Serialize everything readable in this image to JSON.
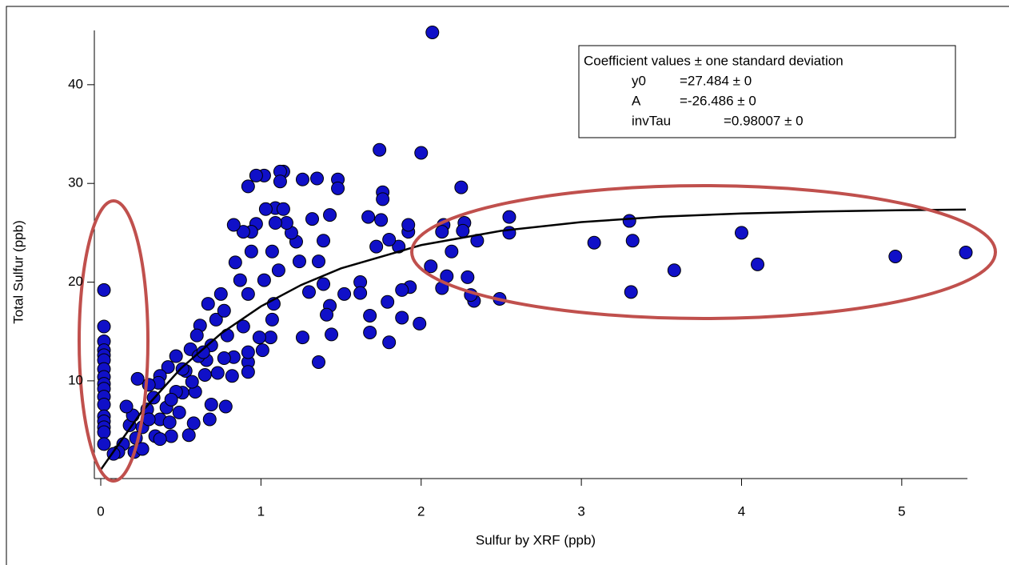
{
  "chart_data": {
    "type": "scatter",
    "xlabel": "Sulfur by XRF (ppb)",
    "ylabel": "Total Sulfur (ppb)",
    "xlim": [
      -0.04,
      5.41
    ],
    "ylim": [
      0.1,
      45.5
    ],
    "xticks": [
      0,
      1,
      2,
      3,
      4,
      5
    ],
    "yticks": [
      10,
      20,
      30,
      40
    ],
    "color": "#1010c8",
    "x": [
      0.02,
      0.02,
      0.02,
      0.02,
      0.02,
      0.02,
      0.02,
      0.02,
      0.02,
      0.02,
      0.02,
      0.02,
      0.02,
      0.02,
      0.02,
      0.02,
      0.02,
      5.4,
      4.96,
      4.1,
      4.0,
      3.58,
      3.31,
      3.32,
      3.3,
      3.08,
      2.55,
      2.55,
      2.49,
      2.35,
      2.33,
      2.31,
      2.29,
      2.25,
      2.27,
      2.26,
      2.19,
      2.14,
      2.13,
      2.16,
      2.13,
      2.06,
      2.07,
      2.0,
      1.99,
      1.92,
      1.92,
      1.93,
      1.88,
      1.88,
      1.86,
      1.8,
      1.79,
      1.8,
      1.74,
      1.76,
      1.76,
      1.75,
      1.67,
      1.72,
      1.68,
      1.68,
      1.62,
      1.62,
      1.52,
      1.48,
      1.48,
      1.43,
      1.43,
      1.41,
      1.44,
      1.39,
      1.36,
      1.36,
      1.39,
      1.32,
      1.35,
      1.26,
      1.3,
      1.26,
      1.24,
      1.22,
      1.19,
      1.14,
      1.12,
      1.12,
      1.09,
      1.14,
      1.16,
      1.09,
      1.07,
      1.11,
      1.02,
      0.97,
      1.03,
      0.97,
      0.94,
      0.94,
      0.89,
      0.83,
      0.92,
      1.02,
      1.08,
      1.07,
      1.06,
      0.99,
      0.92,
      0.87,
      0.84,
      0.75,
      0.67,
      0.72,
      0.79,
      0.83,
      0.92,
      1.01,
      0.62,
      0.6,
      0.56,
      0.53,
      0.47,
      0.42,
      0.37,
      0.36,
      0.3,
      0.23,
      0.78,
      0.69,
      0.68,
      0.58,
      0.55,
      0.51,
      0.49,
      0.41,
      0.44,
      0.37,
      0.33,
      0.29,
      0.26,
      0.22,
      0.18,
      0.14,
      0.11,
      0.21,
      0.26,
      0.08,
      0.34,
      0.47,
      0.59,
      0.65,
      0.73,
      0.66,
      0.57,
      0.43,
      0.3,
      0.2,
      0.16,
      0.37,
      0.44,
      0.51,
      0.61,
      0.69,
      0.77,
      0.89,
      0.92,
      0.77,
      0.64,
      0.82,
      0.92
    ],
    "y": [
      19.2,
      15.5,
      14.0,
      13.1,
      12.6,
      12.1,
      11.2,
      10.4,
      9.7,
      9.2,
      8.4,
      7.6,
      6.4,
      5.9,
      5.3,
      4.8,
      3.6,
      23.0,
      22.6,
      21.8,
      25.0,
      21.2,
      19.0,
      24.2,
      26.2,
      24.0,
      26.6,
      25.0,
      18.3,
      24.2,
      18.1,
      18.7,
      20.5,
      29.6,
      26.0,
      25.2,
      23.1,
      25.8,
      25.1,
      20.6,
      19.4,
      21.6,
      45.3,
      33.1,
      15.8,
      25.1,
      25.8,
      19.5,
      19.2,
      16.4,
      23.6,
      24.3,
      18.0,
      13.9,
      33.4,
      29.1,
      28.4,
      26.3,
      26.6,
      23.6,
      16.6,
      14.9,
      20.0,
      18.9,
      18.8,
      30.4,
      29.5,
      26.8,
      17.6,
      16.7,
      14.7,
      24.2,
      22.1,
      11.9,
      19.8,
      26.4,
      30.5,
      30.4,
      19.0,
      14.4,
      22.1,
      24.1,
      25.0,
      31.2,
      31.2,
      30.2,
      27.5,
      27.4,
      26.0,
      26.0,
      23.1,
      21.2,
      30.8,
      30.8,
      27.4,
      25.9,
      23.1,
      25.1,
      25.1,
      25.8,
      29.7,
      20.2,
      17.8,
      16.2,
      14.4,
      14.4,
      18.8,
      20.2,
      22.0,
      18.8,
      17.8,
      16.2,
      14.6,
      12.4,
      11.9,
      13.1,
      15.6,
      14.6,
      13.2,
      11.0,
      12.5,
      11.4,
      10.5,
      9.8,
      9.6,
      10.2,
      7.4,
      7.6,
      6.1,
      5.7,
      4.5,
      8.8,
      6.8,
      7.3,
      4.4,
      6.1,
      8.3,
      7.1,
      5.3,
      4.2,
      5.5,
      3.6,
      2.8,
      2.8,
      3.1,
      2.6,
      4.4,
      8.9,
      8.9,
      10.6,
      10.8,
      12.1,
      9.9,
      5.8,
      6.1,
      6.5,
      7.4,
      4.1,
      8.1,
      11.2,
      12.5,
      13.6,
      12.3,
      15.5,
      12.9,
      17.1,
      12.9,
      10.5,
      10.9
    ],
    "fit": {
      "color": "#000000",
      "x": [
        0,
        0.25,
        0.5,
        0.75,
        1,
        1.25,
        1.5,
        2,
        2.5,
        3,
        3.5,
        4,
        4.5,
        5,
        5.4
      ],
      "y": [
        0.998,
        6.753,
        11.258,
        14.784,
        17.544,
        19.703,
        21.394,
        23.752,
        25.198,
        26.084,
        26.626,
        26.959,
        27.162,
        27.287,
        27.351
      ]
    },
    "annotation": {
      "title": "Coefficient values ± one standard deviation",
      "rows": [
        [
          "y0",
          "=27.484 ± 0"
        ],
        [
          "A",
          "=-26.486 ± 0"
        ],
        [
          "invTau",
          "=0.98007 ± 0"
        ]
      ]
    }
  }
}
